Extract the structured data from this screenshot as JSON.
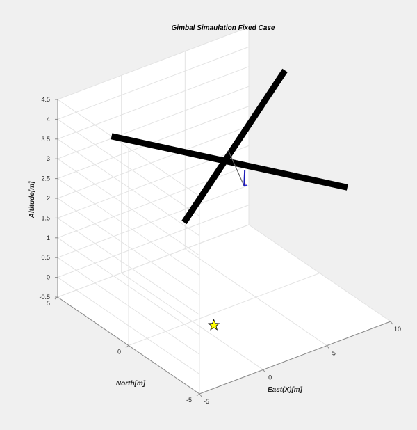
{
  "chart_data": {
    "type": "3d-line",
    "title": "Gimbal Simaulation Fixed Case",
    "xlabel": "East(X)[m]",
    "ylabel": "North[m]",
    "zlabel": "Altitude[m]",
    "xlim": [
      -5,
      10
    ],
    "ylim": [
      -5,
      5
    ],
    "zlim": [
      -0.5,
      4.5
    ],
    "xticks": [
      "-5",
      "0",
      "5",
      "10"
    ],
    "yticks": [
      "-5",
      "0",
      "5"
    ],
    "zticks": [
      "-0.5",
      "0",
      "0.5",
      "1",
      "1.5",
      "2",
      "2.5",
      "3",
      "3.5",
      "4",
      "4.5"
    ],
    "grid": true,
    "frame_arms": [
      {
        "name": "arm-1",
        "from": [
          -5,
          1.2,
          4.5
        ],
        "to": [
          7.5,
          -4.2,
          3.0
        ],
        "color": "#000000"
      },
      {
        "name": "arm-2",
        "from": [
          -4.2,
          -3.2,
          3.3
        ],
        "to": [
          9.5,
          2.0,
          4.2
        ],
        "color": "#000000"
      }
    ],
    "gimbal_link": {
      "from": [
        1.6,
        -1.1,
        3.9
      ],
      "to": [
        2.4,
        -1.5,
        3.0
      ],
      "color": "#666666"
    },
    "gimbal_axes": [
      {
        "axis": "x",
        "color": "#d81b1b",
        "from": [
          2.4,
          -1.5,
          3.0
        ],
        "to": [
          2.5,
          -1.5,
          3.05
        ]
      },
      {
        "axis": "y",
        "color": "#2b2bd9",
        "from": [
          2.4,
          -1.5,
          3.0
        ],
        "to": [
          2.7,
          -1.45,
          2.97
        ]
      },
      {
        "axis": "z",
        "color": "#1a1ab8",
        "from": [
          2.4,
          -1.5,
          3.0
        ],
        "to": [
          2.45,
          -1.5,
          3.4
        ]
      }
    ],
    "target": {
      "x": 0.8,
      "y": -0.8,
      "z": -0.5,
      "marker": "star",
      "color": "#ffff00"
    }
  }
}
